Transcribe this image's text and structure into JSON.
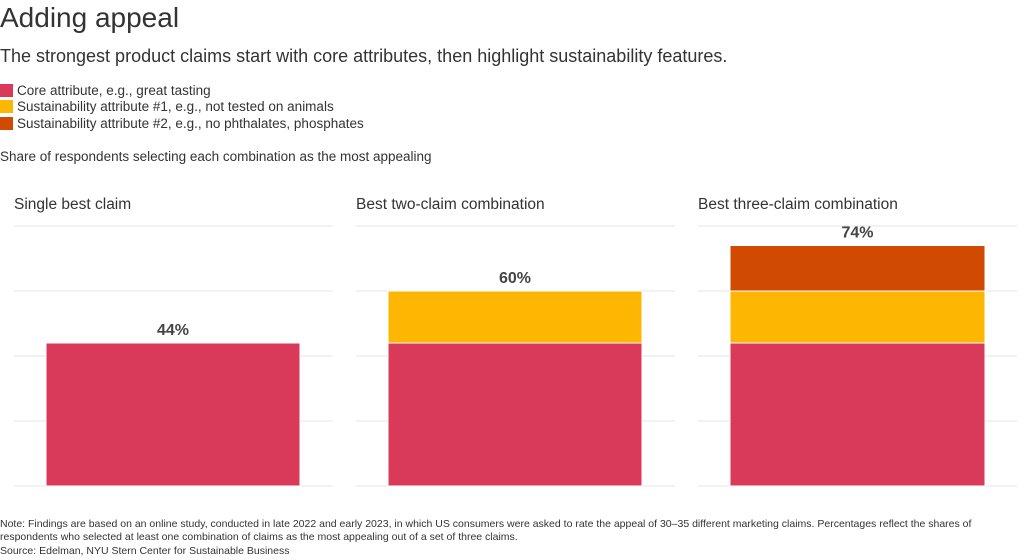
{
  "title": "Adding appeal",
  "subtitle": "The strongest product claims start with core attributes, then highlight sustainability features.",
  "legend": [
    {
      "label": "Core attribute, e.g., great tasting",
      "color": "#DA3A59"
    },
    {
      "label": "Sustainability attribute #1, e.g., not tested on animals",
      "color": "#FDB602"
    },
    {
      "label": "Sustainability attribute #2, e.g., no phthalates, phosphates",
      "color": "#D04A02"
    }
  ],
  "chart_caption": "Share of respondents selecting each combination as the most appealing",
  "chart_data": {
    "type": "bar",
    "stacked": true,
    "categories": [
      "Single best claim",
      "Best two-claim combination",
      "Best three-claim combination"
    ],
    "series": [
      {
        "name": "Core attribute, e.g., great tasting",
        "values": [
          44,
          44,
          44
        ],
        "color": "#DA3A59"
      },
      {
        "name": "Sustainability attribute #1, e.g., not tested on animals",
        "values": [
          0,
          16,
          16
        ],
        "color": "#FDB602"
      },
      {
        "name": "Sustainability attribute #2, e.g., no phthalates, phosphates",
        "values": [
          0,
          0,
          14
        ],
        "color": "#D04A02"
      }
    ],
    "totals": [
      "44%",
      "60%",
      "74%"
    ],
    "ylim": [
      0,
      80
    ],
    "gridlines": [
      0,
      20,
      40,
      60,
      80
    ],
    "grid": true
  },
  "footnote": {
    "note": "Note: Findings are based on an online study, conducted in late 2022 and early 2023, in which US consumers were asked to rate the appeal of 30–35 different marketing claims. Percentages reflect the shares of respondents who selected at least one combination of claims as the most appealing out of a set of three claims.",
    "source": "Source: Edelman, NYU Stern Center for Sustainable Business"
  }
}
